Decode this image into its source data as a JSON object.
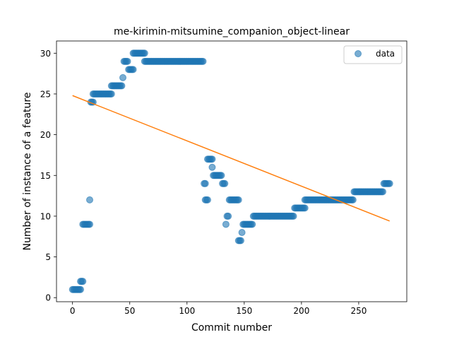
{
  "chart_data": {
    "type": "scatter",
    "title": "me-kirimin-mitsumine_companion_object-linear",
    "xlabel": "Commit number",
    "ylabel": "Number of instance of a feature",
    "xlim": [
      -14,
      292
    ],
    "ylim": [
      -0.5,
      31.5
    ],
    "xticks": [
      0,
      50,
      100,
      150,
      200,
      250
    ],
    "yticks": [
      0,
      5,
      10,
      15,
      20,
      25,
      30
    ],
    "grid": false,
    "legend": {
      "position": "top-right",
      "entries": [
        "data"
      ]
    },
    "colors": {
      "points": "#1f77b4",
      "fit": "#ff7f0e"
    },
    "series": [
      {
        "name": "data",
        "kind": "scatter",
        "segments": [
          {
            "x_start": 0,
            "x_end": 7,
            "y": 1
          },
          {
            "x_start": 7,
            "x_end": 9,
            "y": 2
          },
          {
            "x_start": 9,
            "x_end": 15,
            "y": 9
          },
          {
            "x_start": 15,
            "x_end": 15,
            "y": 12
          },
          {
            "x_start": 16,
            "x_end": 18,
            "y": 24
          },
          {
            "x_start": 18,
            "x_end": 34,
            "y": 25
          },
          {
            "x_start": 34,
            "x_end": 43,
            "y": 26
          },
          {
            "x_start": 44,
            "x_end": 44,
            "y": 27
          },
          {
            "x_start": 45,
            "x_end": 48,
            "y": 29
          },
          {
            "x_start": 49,
            "x_end": 53,
            "y": 28
          },
          {
            "x_start": 53,
            "x_end": 63,
            "y": 30
          },
          {
            "x_start": 63,
            "x_end": 114,
            "y": 29
          },
          {
            "x_start": 115,
            "x_end": 116,
            "y": 14
          },
          {
            "x_start": 116,
            "x_end": 118,
            "y": 12
          },
          {
            "x_start": 118,
            "x_end": 122,
            "y": 17
          },
          {
            "x_start": 122,
            "x_end": 122,
            "y": 16
          },
          {
            "x_start": 123,
            "x_end": 130,
            "y": 15
          },
          {
            "x_start": 131,
            "x_end": 133,
            "y": 14
          },
          {
            "x_start": 134,
            "x_end": 134,
            "y": 9
          },
          {
            "x_start": 135,
            "x_end": 136,
            "y": 10
          },
          {
            "x_start": 137,
            "x_end": 145,
            "y": 12
          },
          {
            "x_start": 145,
            "x_end": 147,
            "y": 7
          },
          {
            "x_start": 148,
            "x_end": 148,
            "y": 8
          },
          {
            "x_start": 149,
            "x_end": 157,
            "y": 9
          },
          {
            "x_start": 158,
            "x_end": 193,
            "y": 10
          },
          {
            "x_start": 194,
            "x_end": 203,
            "y": 11
          },
          {
            "x_start": 203,
            "x_end": 245,
            "y": 12
          },
          {
            "x_start": 246,
            "x_end": 271,
            "y": 13
          },
          {
            "x_start": 272,
            "x_end": 277,
            "y": 14
          }
        ]
      },
      {
        "name": "",
        "kind": "line",
        "x": [
          0,
          277
        ],
        "y": [
          24.8,
          9.4
        ]
      }
    ]
  }
}
